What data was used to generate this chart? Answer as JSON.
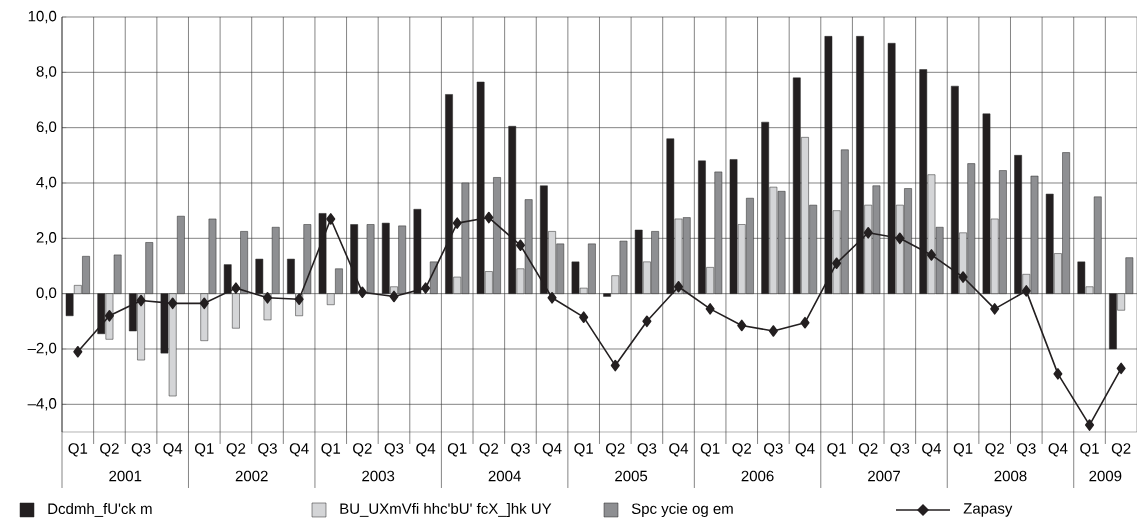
{
  "chart_data": {
    "type": "bar",
    "categories": [
      "Q1",
      "Q2",
      "Q3",
      "Q4",
      "Q1",
      "Q2",
      "Q3",
      "Q4",
      "Q1",
      "Q2",
      "Q3",
      "Q4",
      "Q1",
      "Q2",
      "Q3",
      "Q4",
      "Q1",
      "Q2",
      "Q3",
      "Q4",
      "Q1",
      "Q2",
      "Q3",
      "Q4",
      "Q1",
      "Q2",
      "Q3",
      "Q4",
      "Q1",
      "Q2",
      "Q3",
      "Q4",
      "Q1",
      "Q2"
    ],
    "series": [
      {
        "name": "Dcdmh_fU'ck m",
        "color": "#231f20",
        "values": [
          -0.8,
          -1.45,
          -1.35,
          -2.15,
          null,
          1.05,
          1.25,
          1.25,
          2.9,
          2.5,
          2.55,
          3.05,
          7.2,
          7.65,
          6.05,
          3.9,
          1.15,
          -0.1,
          2.3,
          5.6,
          4.8,
          4.85,
          6.2,
          7.8,
          9.3,
          9.3,
          9.05,
          8.1,
          7.5,
          6.5,
          5.0,
          3.6,
          1.15,
          -2.0
        ]
      },
      {
        "name": "BU_UXmVfi hhc'bU' fcX_]hk UY",
        "color": "#d4d5d7",
        "values": [
          0.3,
          -1.65,
          -2.4,
          -3.7,
          -1.7,
          -1.25,
          -0.95,
          -0.8,
          -0.4,
          null,
          0.25,
          null,
          0.6,
          0.8,
          0.9,
          2.25,
          0.2,
          0.65,
          1.15,
          2.7,
          0.95,
          2.5,
          3.85,
          5.65,
          3.0,
          3.2,
          3.2,
          4.3,
          2.2,
          2.7,
          0.7,
          1.45,
          0.25,
          -0.6
        ]
      },
      {
        "name": "Spc ycie og em",
        "color": "#8e8f92",
        "values": [
          1.35,
          1.4,
          1.85,
          2.8,
          2.7,
          2.25,
          2.4,
          2.5,
          0.9,
          2.5,
          2.45,
          1.15,
          4.0,
          4.2,
          3.4,
          1.8,
          1.8,
          1.9,
          2.25,
          2.75,
          4.4,
          3.45,
          3.7,
          3.2,
          5.2,
          3.9,
          3.8,
          2.4,
          4.7,
          4.45,
          4.25,
          5.1,
          3.5,
          1.3
        ]
      },
      {
        "name": "Zapasy",
        "type": "line",
        "color": "#231f20",
        "values": [
          -2.1,
          -0.8,
          -0.25,
          -0.35,
          -0.35,
          0.2,
          -0.15,
          -0.2,
          2.7,
          0.05,
          -0.1,
          0.2,
          2.55,
          2.75,
          1.75,
          -0.15,
          -0.85,
          -2.6,
          -1.0,
          0.25,
          -0.55,
          -1.15,
          -1.35,
          -1.05,
          1.1,
          2.2,
          2.0,
          1.4,
          0.6,
          -0.55,
          0.1,
          -2.9,
          -4.75,
          -2.7
        ]
      }
    ],
    "ylim": [
      -5,
      10
    ],
    "yticks": [
      {
        "value": -4,
        "label": "–4,0"
      },
      {
        "value": -2,
        "label": "–2,0"
      },
      {
        "value": 0,
        "label": "0,0"
      },
      {
        "value": 2,
        "label": "2,0"
      },
      {
        "value": 4,
        "label": "4,0"
      },
      {
        "value": 6,
        "label": "6,0"
      },
      {
        "value": 8,
        "label": "8,0"
      },
      {
        "value": 10,
        "label": "10,0"
      }
    ],
    "annotations": [
      "2001",
      "2002",
      "2003",
      "2004",
      "2005",
      "2006",
      "2007",
      "2008",
      "2009"
    ],
    "grid": true,
    "legend": "bottom",
    "marker": "diamond",
    "line_style": "solid"
  }
}
